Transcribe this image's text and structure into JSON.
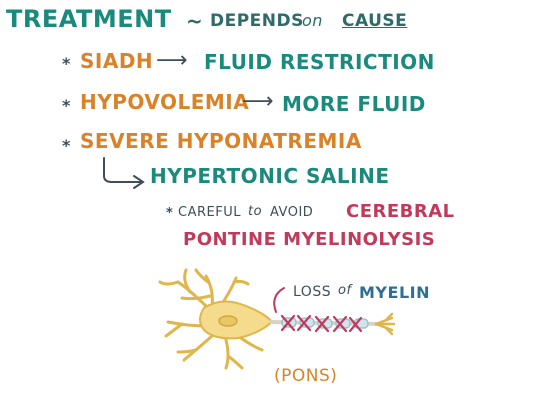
{
  "heading": {
    "title": "TREATMENT",
    "tilde": "~",
    "depends": "DEPENDS",
    "on": "on",
    "cause": "CAUSE"
  },
  "bullets": [
    {
      "star": "*",
      "cause": "SIADH",
      "arrow": "⟶",
      "treatment": "FLUID RESTRICTION"
    },
    {
      "star": "*",
      "cause": "HYPOVOLEMIA",
      "arrow": "⟶",
      "treatment": "MORE FLUID"
    },
    {
      "star": "*",
      "cause": "SEVERE HYPONATREMIA",
      "treatment": "HYPERTONIC SALINE"
    }
  ],
  "caution": {
    "star": "*",
    "careful": "CAREFUL",
    "to": "to",
    "avoid": "AVOID",
    "condition_line1": "CEREBRAL",
    "condition_line2": "PONTINE MYELINOLYSIS"
  },
  "diagram": {
    "loss": "LOSS",
    "of": "of",
    "myelin": "MYELIN",
    "location": "(PONS)"
  },
  "colors": {
    "teal": "#1a8a7c",
    "orange": "#d98228",
    "pink": "#c23a5a",
    "blue": "#2f6f96",
    "neuron_fill": "#f4dc8c",
    "neuron_stroke": "#e0b64a",
    "x_marks": "#c23a5a"
  }
}
